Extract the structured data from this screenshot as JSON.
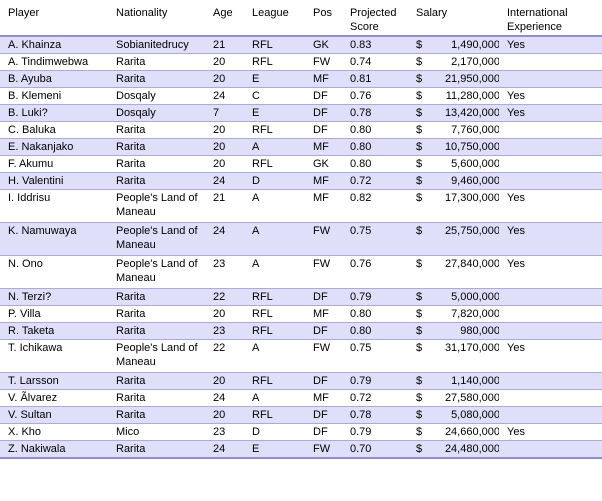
{
  "table": {
    "headers": {
      "player": "Player",
      "nationality": "Nationality",
      "age": "Age",
      "league": "League",
      "pos": "Pos",
      "score": "Projected Score",
      "salary": "Salary",
      "intl": "International Experience"
    },
    "currency_symbol": "$",
    "rows": [
      {
        "player": "A. Khainza",
        "nationality": "Sobianitedrucy",
        "age": "21",
        "league": "RFL",
        "pos": "GK",
        "score": "0.83",
        "salary": "1,490,000",
        "intl": "Yes"
      },
      {
        "player": "A. Tindimwebwa",
        "nationality": "Rarita",
        "age": "20",
        "league": "RFL",
        "pos": "FW",
        "score": "0.74",
        "salary": "2,170,000",
        "intl": ""
      },
      {
        "player": "B. Ayuba",
        "nationality": "Rarita",
        "age": "20",
        "league": "E",
        "pos": "MF",
        "score": "0.81",
        "salary": "21,950,000",
        "intl": ""
      },
      {
        "player": "B. Klemeni",
        "nationality": "Dosqaly",
        "age": "24",
        "league": "C",
        "pos": "DF",
        "score": "0.76",
        "salary": "11,280,000",
        "intl": "Yes"
      },
      {
        "player": "B. Luki?",
        "nationality": "Dosqaly",
        "age": "7",
        "league": "E",
        "pos": "DF",
        "score": "0.78",
        "salary": "13,420,000",
        "intl": "Yes"
      },
      {
        "player": "C. Baluka",
        "nationality": "Rarita",
        "age": "20",
        "league": "RFL",
        "pos": "DF",
        "score": "0.80",
        "salary": "7,760,000",
        "intl": ""
      },
      {
        "player": "E. Nakanjako",
        "nationality": "Rarita",
        "age": "20",
        "league": "A",
        "pos": "MF",
        "score": "0.80",
        "salary": "10,750,000",
        "intl": ""
      },
      {
        "player": "F. Akumu",
        "nationality": "Rarita",
        "age": "20",
        "league": "RFL",
        "pos": "GK",
        "score": "0.80",
        "salary": "5,600,000",
        "intl": ""
      },
      {
        "player": "H. Valentini",
        "nationality": "Rarita",
        "age": "24",
        "league": "D",
        "pos": "MF",
        "score": "0.72",
        "salary": "9,460,000",
        "intl": ""
      },
      {
        "player": "I. Iddrisu",
        "nationality": "People's Land of Maneau",
        "age": "21",
        "league": "A",
        "pos": "MF",
        "score": "0.82",
        "salary": "17,300,000",
        "intl": "Yes"
      },
      {
        "player": "K. Namuwaya",
        "nationality": "People's Land of Maneau",
        "age": "24",
        "league": "A",
        "pos": "FW",
        "score": "0.75",
        "salary": "25,750,000",
        "intl": "Yes"
      },
      {
        "player": "N. Ono",
        "nationality": "People's Land of Maneau",
        "age": "23",
        "league": "A",
        "pos": "FW",
        "score": "0.76",
        "salary": "27,840,000",
        "intl": "Yes"
      },
      {
        "player": "N. Terzi?",
        "nationality": "Rarita",
        "age": "22",
        "league": "RFL",
        "pos": "DF",
        "score": "0.79",
        "salary": "5,000,000",
        "intl": ""
      },
      {
        "player": "P. Villa",
        "nationality": "Rarita",
        "age": "20",
        "league": "RFL",
        "pos": "MF",
        "score": "0.80",
        "salary": "7,820,000",
        "intl": ""
      },
      {
        "player": "R. Taketa",
        "nationality": "Rarita",
        "age": "23",
        "league": "RFL",
        "pos": "DF",
        "score": "0.80",
        "salary": "980,000",
        "intl": ""
      },
      {
        "player": "T. Ichikawa",
        "nationality": "People's Land of Maneau",
        "age": "22",
        "league": "A",
        "pos": "FW",
        "score": "0.75",
        "salary": "31,170,000",
        "intl": "Yes"
      },
      {
        "player": "T. Larsson",
        "nationality": "Rarita",
        "age": "20",
        "league": "RFL",
        "pos": "DF",
        "score": "0.79",
        "salary": "1,140,000",
        "intl": ""
      },
      {
        "player": "V. Ãlvarez",
        "nationality": "Rarita",
        "age": "24",
        "league": "A",
        "pos": "MF",
        "score": "0.72",
        "salary": "27,580,000",
        "intl": ""
      },
      {
        "player": "V. Sultan",
        "nationality": "Rarita",
        "age": "20",
        "league": "RFL",
        "pos": "DF",
        "score": "0.78",
        "salary": "5,080,000",
        "intl": ""
      },
      {
        "player": "X. Kho",
        "nationality": "Mico",
        "age": "23",
        "league": "D",
        "pos": "DF",
        "score": "0.79",
        "salary": "24,660,000",
        "intl": "Yes"
      },
      {
        "player": "Z. Nakiwala",
        "nationality": "Rarita",
        "age": "24",
        "league": "E",
        "pos": "FW",
        "score": "0.70",
        "salary": "24,480,000",
        "intl": ""
      }
    ]
  }
}
